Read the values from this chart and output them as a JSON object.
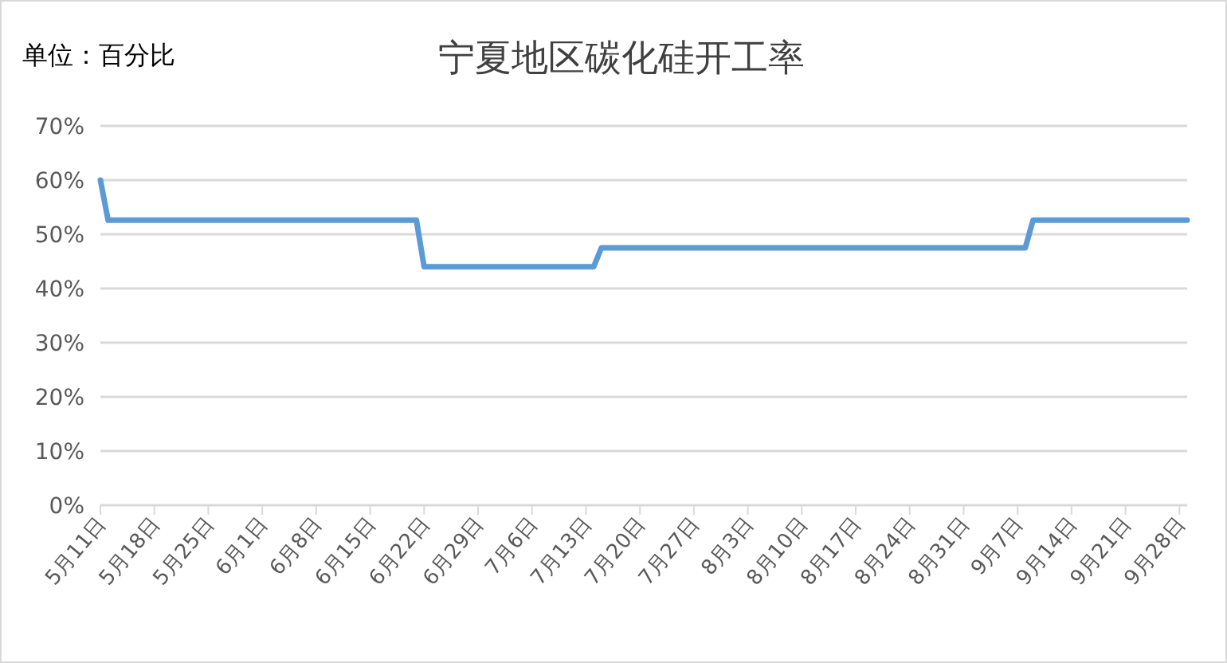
{
  "chart_data": {
    "type": "line",
    "title": "宁夏地区碳化硅开工率",
    "annotations": [
      "单位：百分比"
    ],
    "x": [
      "--05-11",
      "--05-12",
      "--06-21",
      "--06-22",
      "--07-14",
      "--07-15",
      "--09-08",
      "--09-09",
      "--09-29"
    ],
    "series": [
      {
        "color": "#5b9bd5",
        "values": [
          60,
          52.6,
          52.6,
          44,
          44,
          47.5,
          47.5,
          52.6,
          52.6
        ]
      }
    ],
    "xlim": [
      "--05-11",
      "--09-29"
    ],
    "xticks": [
      {
        "value": "--05-11",
        "label": "5月11日"
      },
      {
        "value": "--05-18",
        "label": "5月18日"
      },
      {
        "value": "--05-25",
        "label": "5月25日"
      },
      {
        "value": "--06-01",
        "label": "6月1日"
      },
      {
        "value": "--06-08",
        "label": "6月8日"
      },
      {
        "value": "--06-15",
        "label": "6月15日"
      },
      {
        "value": "--06-22",
        "label": "6月22日"
      },
      {
        "value": "--06-29",
        "label": "6月29日"
      },
      {
        "value": "--07-06",
        "label": "7月6日"
      },
      {
        "value": "--07-13",
        "label": "7月13日"
      },
      {
        "value": "--07-20",
        "label": "7月20日"
      },
      {
        "value": "--07-27",
        "label": "7月27日"
      },
      {
        "value": "--08-03",
        "label": "8月3日"
      },
      {
        "value": "--08-10",
        "label": "8月10日"
      },
      {
        "value": "--08-17",
        "label": "8月17日"
      },
      {
        "value": "--08-24",
        "label": "8月24日"
      },
      {
        "value": "--08-31",
        "label": "8月31日"
      },
      {
        "value": "--09-07",
        "label": "9月7日"
      },
      {
        "value": "--09-14",
        "label": "9月14日"
      },
      {
        "value": "--09-21",
        "label": "9月21日"
      },
      {
        "value": "--09-28",
        "label": "9月28日"
      }
    ],
    "ylim": [
      0,
      70
    ],
    "yticks": [
      {
        "value": 0,
        "label": "0%"
      },
      {
        "value": 10,
        "label": "10%"
      },
      {
        "value": 20,
        "label": "20%"
      },
      {
        "value": 30,
        "label": "30%"
      },
      {
        "value": 40,
        "label": "40%"
      },
      {
        "value": 50,
        "label": "50%"
      },
      {
        "value": 60,
        "label": "60%"
      },
      {
        "value": 70,
        "label": "70%"
      }
    ],
    "grid": "y",
    "marker": "none",
    "line_style": "solid"
  }
}
